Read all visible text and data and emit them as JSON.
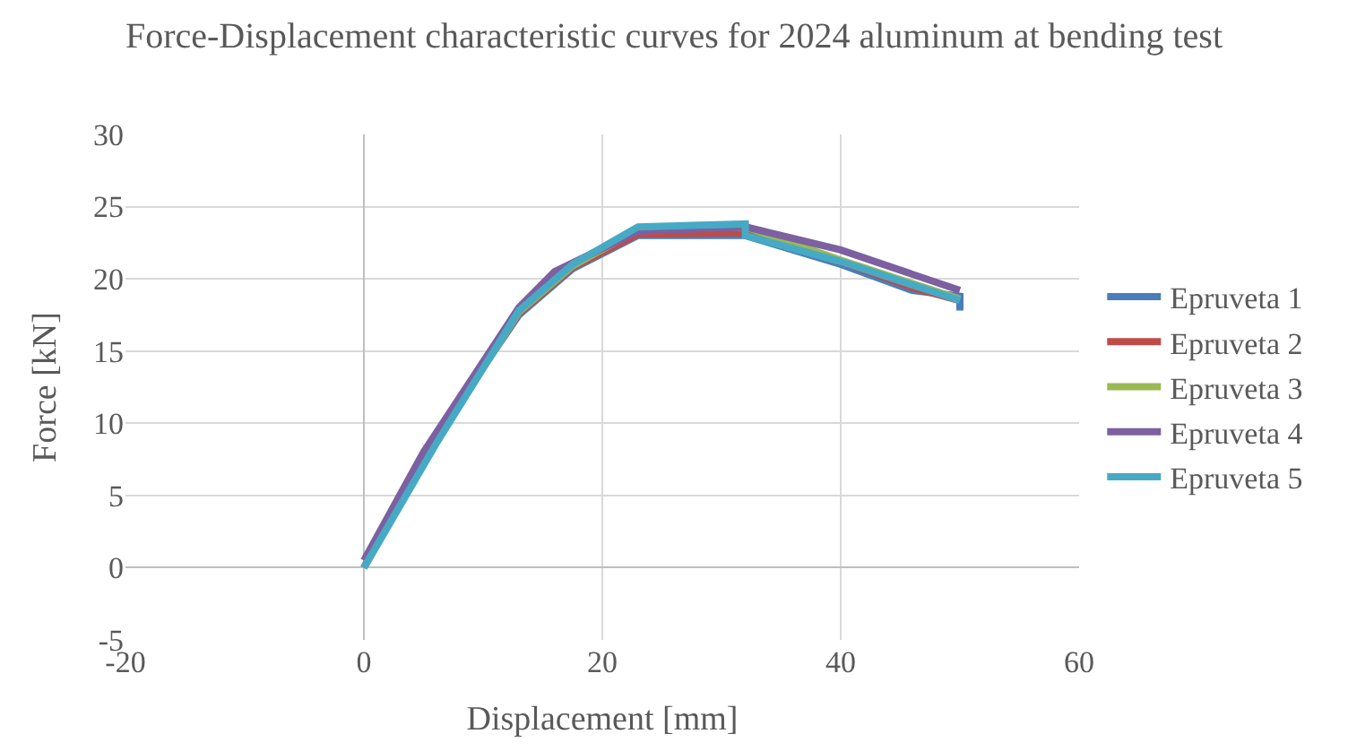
{
  "chart_data": {
    "type": "line",
    "title": "Force-Displacement characteristic curves for 2024 aluminum at bending test",
    "xlabel": "Displacement [mm]",
    "ylabel": "Force [kN]",
    "xlim": [
      -20,
      60
    ],
    "xticks": [
      -20,
      0,
      20,
      40,
      60
    ],
    "ylim": [
      -5,
      30
    ],
    "yticks": [
      -5,
      0,
      5,
      10,
      15,
      20,
      25,
      30
    ],
    "grid": true,
    "legend": "right",
    "marker": "none",
    "line_style": "solid",
    "series": [
      {
        "name": "Epruveta 1",
        "color": "#4a7ebb",
        "x": [
          0,
          6,
          13,
          17.5,
          23,
          32,
          40,
          46,
          50,
          50
        ],
        "values": [
          0,
          9,
          17.5,
          20.7,
          23,
          23,
          21,
          19.2,
          18.8,
          17.8
        ]
      },
      {
        "name": "Epruveta 2",
        "color": "#be4b48",
        "x": [
          0,
          6,
          13,
          17.5,
          23,
          32,
          40,
          46,
          50
        ],
        "values": [
          0,
          9,
          17.6,
          20.8,
          23.1,
          23.2,
          21.2,
          19.4,
          18.5
        ]
      },
      {
        "name": "Epruveta 3",
        "color": "#98b954",
        "x": [
          0,
          6,
          13,
          17.5,
          23,
          32,
          40,
          50
        ],
        "values": [
          0,
          8.6,
          17.7,
          20.9,
          23.4,
          23.6,
          21.3,
          18.6
        ]
      },
      {
        "name": "Epruveta 4",
        "color": "#7d60a0",
        "x": [
          0,
          5,
          13,
          16,
          23,
          32,
          40,
          50
        ],
        "values": [
          0.5,
          8,
          18,
          20.5,
          23.3,
          23.6,
          22,
          19.2
        ]
      },
      {
        "name": "Epruveta 5",
        "color": "#46aac5",
        "x": [
          0,
          6,
          13,
          17.5,
          23,
          32,
          32,
          40,
          50
        ],
        "values": [
          0,
          8.5,
          17.8,
          21,
          23.6,
          23.8,
          23,
          21.2,
          18.5
        ]
      }
    ]
  }
}
